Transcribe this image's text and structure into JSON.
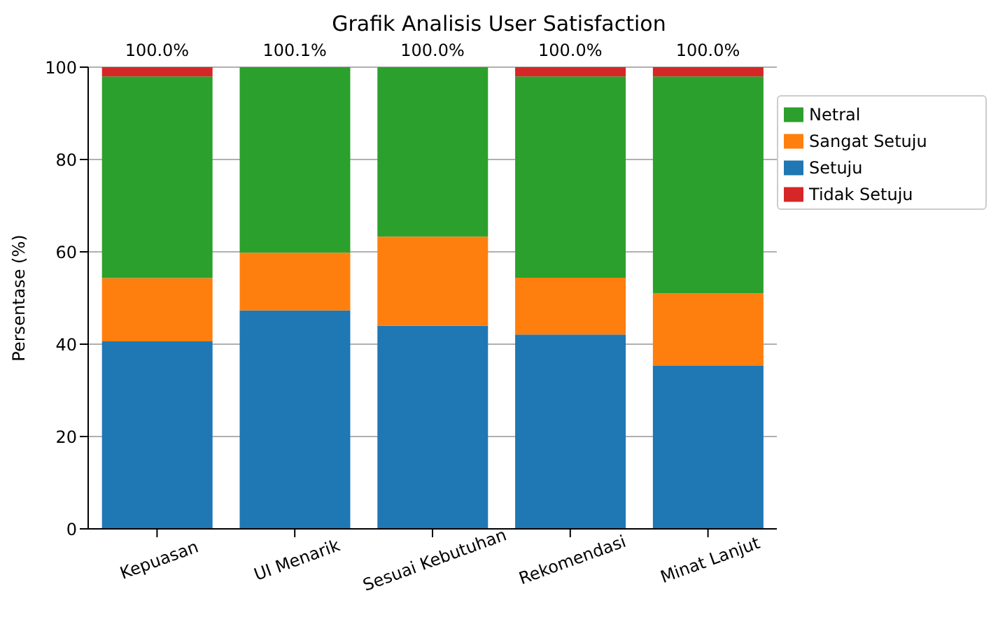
{
  "chart_data": {
    "type": "bar",
    "title": "Grafik Analisis User Satisfaction",
    "ylabel": "Persentase (%)",
    "categories": [
      "Kepuasan",
      "UI Menarik",
      "Sesuai Kebutuhan",
      "Rekomendasi",
      "Minat Lanjut"
    ],
    "stacked": true,
    "series": [
      {
        "name": "Setuju",
        "color": "#1f77b4",
        "values": [
          40.6,
          47.3,
          44.0,
          42.1,
          35.3
        ]
      },
      {
        "name": "Sangat Setuju",
        "color": "#ff7f0e",
        "values": [
          13.7,
          12.5,
          19.3,
          12.3,
          15.7
        ]
      },
      {
        "name": "Netral",
        "color": "#2ca02c",
        "values": [
          43.7,
          40.3,
          36.7,
          43.6,
          47.0
        ]
      },
      {
        "name": "Tidak Setuju",
        "color": "#d62728",
        "values": [
          2.0,
          0,
          0,
          2.0,
          2.0
        ]
      }
    ],
    "totals": [
      "100.0%",
      "100.1%",
      "100.0%",
      "100.0%",
      "100.0%"
    ],
    "ylim": [
      0,
      100
    ],
    "yticks": [
      0,
      20,
      40,
      60,
      80,
      100
    ],
    "grid": "y",
    "legend": "top right"
  }
}
